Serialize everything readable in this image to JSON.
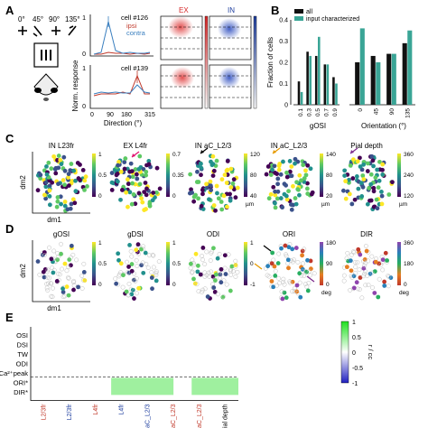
{
  "panels": {
    "A": "A",
    "B": "B",
    "C": "C",
    "D": "D",
    "E": "E"
  },
  "panelA": {
    "orientations": [
      "0°",
      "45°",
      "90°",
      "135°"
    ],
    "cell1": "cell #126",
    "cell2": "cell #139",
    "legend": [
      "ipsi",
      "contra"
    ],
    "ylabel": "Norm. response",
    "xlabel": "Direction (°)",
    "xticks": [
      "0",
      "90",
      "180",
      "315"
    ],
    "yticks": [
      "0",
      "1"
    ],
    "ex_label": "EX",
    "in_label": "IN",
    "colors": {
      "ipsi": "#c0392b",
      "contra": "#3a7fbf",
      "ex": "#d62728",
      "in": "#1f3f9f"
    }
  },
  "chart_data": [
    {
      "type": "bar",
      "ylabel": "Fraction of cells",
      "legend": [
        "all",
        "input characterized"
      ],
      "ylim": [
        0,
        0.4
      ],
      "yticks": [
        "0",
        "0.1",
        "0.2",
        "0.3",
        "0.4"
      ],
      "groups": [
        {
          "xlabel": "gOSI",
          "categories": [
            "0.1",
            "0.3",
            "0.5",
            "0.7",
            "0.9"
          ],
          "series": [
            {
              "name": "all",
              "values": [
                0.11,
                0.25,
                0.23,
                0.19,
                0.13
              ]
            },
            {
              "name": "input characterized",
              "values": [
                0.06,
                0.23,
                0.32,
                0.19,
                0.1
              ]
            }
          ]
        },
        {
          "xlabel": "Orientation (°)",
          "categories": [
            "0",
            "45",
            "90",
            "135"
          ],
          "series": [
            {
              "name": "all",
              "values": [
                0.2,
                0.23,
                0.24,
                0.29
              ]
            },
            {
              "name": "input characterized",
              "values": [
                0.36,
                0.2,
                0.24,
                0.35
              ]
            }
          ]
        }
      ],
      "colors": {
        "all": "#111111",
        "input characterized": "#3aa596"
      }
    },
    {
      "type": "heatmap",
      "rows": [
        "OSI",
        "DSI",
        "TW",
        "ODI",
        "Ca²⁺peak",
        "ORI*",
        "DIR*"
      ],
      "cols": [
        "L2/3fr",
        "L2/3fr",
        "L4fr",
        "L4fr",
        "aC_L2/3",
        "aC_L2/3",
        "aC_L2/3",
        "Pial depth"
      ],
      "values_note": "",
      "filled_row": "ORI*",
      "fill_cols": [
        3,
        4,
        6,
        7
      ],
      "fill_value": 0.15,
      "colorbar_label": "r / cc",
      "colorbar_ticks": [
        "1",
        "0.5",
        "0",
        "-0.5",
        "-1"
      ]
    }
  ],
  "panelC": [
    {
      "title": "IN L23fr",
      "ticks": [
        "1",
        "0.5",
        "0"
      ],
      "unit": ""
    },
    {
      "title": "EX L4fr",
      "ticks": [
        "0.7",
        "0.35",
        "0"
      ],
      "unit": ""
    },
    {
      "title": "IN aC_L2/3",
      "ticks": [
        "120",
        "80",
        "40"
      ],
      "unit": "µm"
    },
    {
      "title": "IN aC_L2/3",
      "ticks": [
        "140",
        "80",
        "20"
      ],
      "unit": "µm"
    },
    {
      "title": "Pial depth",
      "ticks": [
        "360",
        "240",
        "120"
      ],
      "unit": "µm"
    }
  ],
  "panelD": [
    {
      "title": "gOSI",
      "ticks": [
        "1",
        "0.5",
        "0"
      ],
      "unit": ""
    },
    {
      "title": "gDSI",
      "ticks": [
        "1",
        "0.5",
        "0"
      ],
      "unit": ""
    },
    {
      "title": "ODI",
      "ticks": [
        "1",
        "0",
        "-1"
      ],
      "unit": ""
    },
    {
      "title": "ORI",
      "ticks": [
        "180",
        "90",
        "0"
      ],
      "unit": "deg"
    },
    {
      "title": "DIR",
      "ticks": [
        "360",
        "180",
        "0"
      ],
      "unit": "deg"
    }
  ],
  "axes": {
    "dm2": "dm2",
    "dm1": "dm1"
  }
}
